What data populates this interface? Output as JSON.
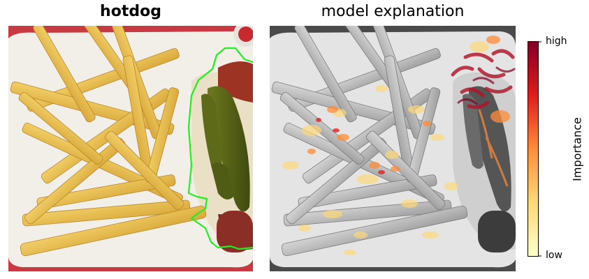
{
  "panels": {
    "left": {
      "title": "hotdog",
      "content": "food-photo"
    },
    "right": {
      "title": "model explanation",
      "content": "grayscale-photo-with-heatmap"
    }
  },
  "colorbar": {
    "label": "Importance",
    "high_label": "high",
    "low_label": "low",
    "colormap": "YlOrRd",
    "colors": [
      "#ffffcc",
      "#fed976",
      "#fd8d3c",
      "#e31a1c",
      "#800026"
    ]
  },
  "segment_outline_color": "#22ee22"
}
